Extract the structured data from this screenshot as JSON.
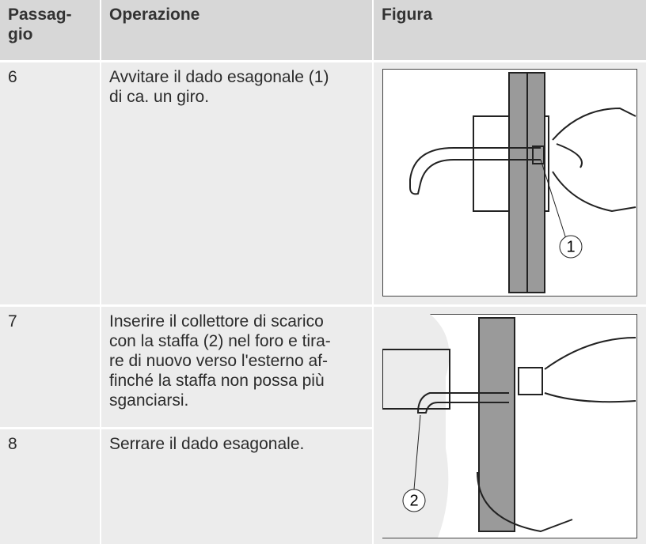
{
  "table": {
    "header": [
      [
        "Passag-",
        "gio"
      ],
      [
        "Operazione"
      ],
      [
        "Figura"
      ]
    ],
    "rows": [
      {
        "step": "6",
        "operation": [
          "Avvitare il dado esagonale (1)",
          "di ca. un giro."
        ]
      },
      {
        "step": "7",
        "operation": [
          "Inserire il collettore di scarico",
          "con la staffa (2) nel foro e tira-",
          "re di nuovo verso l'esterno af-",
          "finché la staffa non possa più",
          "sganciarsi."
        ]
      },
      {
        "step": "8",
        "operation": [
          "Serrare il dado esagonale."
        ]
      }
    ]
  },
  "figures": [
    {
      "callout": "1"
    },
    {
      "callout": "2"
    }
  ]
}
